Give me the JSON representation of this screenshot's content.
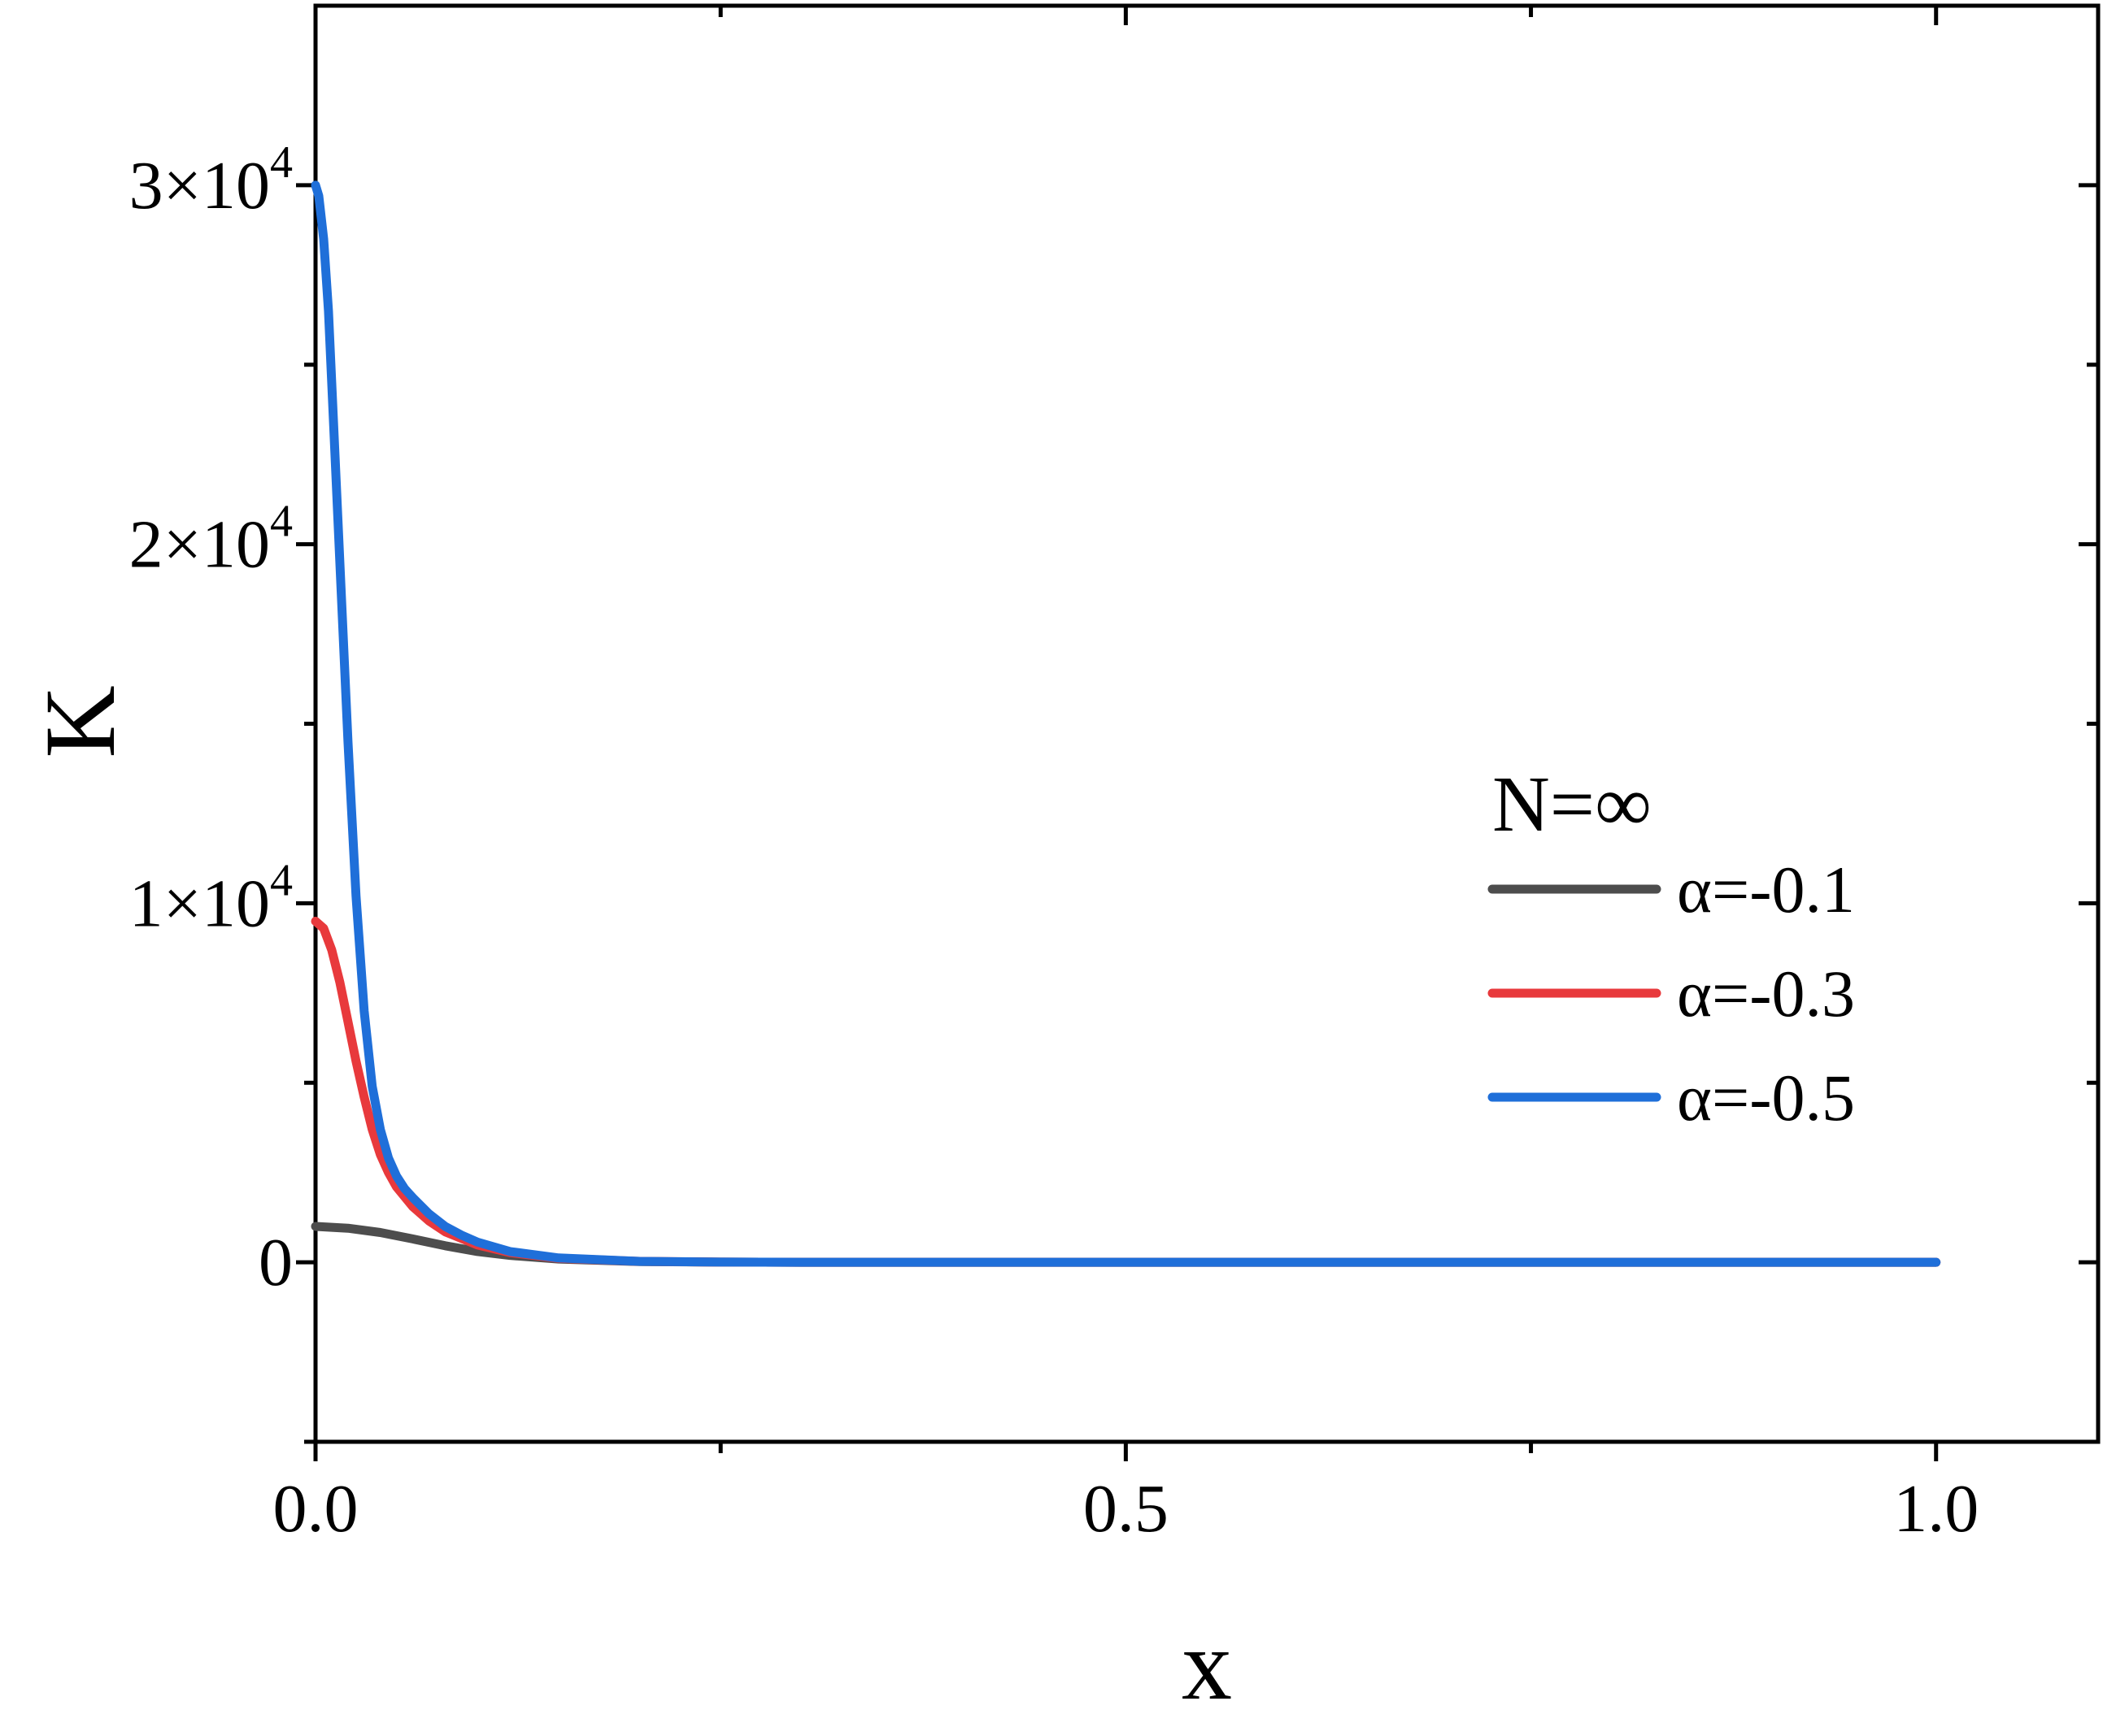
{
  "chart_data": {
    "type": "line",
    "xlabel": "x",
    "ylabel": "K",
    "xlim": [
      0.0,
      1.1
    ],
    "ylim": [
      -5000,
      35000
    ],
    "x_ticks": [
      {
        "value": 0.0,
        "label": "0.0"
      },
      {
        "value": 0.5,
        "label": "0.5"
      },
      {
        "value": 1.0,
        "label": "1.0"
      }
    ],
    "y_ticks": [
      {
        "value": 0,
        "mantissa": "0",
        "exponent": ""
      },
      {
        "value": 10000,
        "mantissa": "1×10",
        "exponent": "4"
      },
      {
        "value": 20000,
        "mantissa": "2×10",
        "exponent": "4"
      },
      {
        "value": 30000,
        "mantissa": "3×10",
        "exponent": "4"
      }
    ],
    "x_minor_ticks": [
      0.25,
      0.75
    ],
    "y_minor_ticks": [
      -5000,
      5000,
      15000,
      25000
    ],
    "grid": false,
    "legend": {
      "title": "N=∞",
      "placement": "right"
    },
    "series": [
      {
        "name": "α=-0.1",
        "color": "#4d4d4d",
        "x": [
          0,
          0.02,
          0.04,
          0.06,
          0.08,
          0.1,
          0.12,
          0.15,
          0.2,
          0.25,
          0.3,
          0.4,
          0.5,
          0.7,
          1.0
        ],
        "y": [
          1000,
          950,
          830,
          650,
          460,
          300,
          190,
          90,
          20,
          5,
          0,
          0,
          0,
          0,
          0
        ]
      },
      {
        "name": "α=-0.3",
        "color": "#e8393c",
        "x": [
          0,
          0.005,
          0.01,
          0.015,
          0.02,
          0.025,
          0.03,
          0.035,
          0.04,
          0.045,
          0.05,
          0.06,
          0.07,
          0.08,
          0.1,
          0.12,
          0.15,
          0.2,
          0.25,
          0.3,
          0.4,
          0.5,
          0.7,
          1.0
        ],
        "y": [
          9500,
          9300,
          8700,
          7800,
          6700,
          5600,
          4600,
          3700,
          3000,
          2500,
          2100,
          1550,
          1150,
          850,
          480,
          270,
          110,
          25,
          5,
          0,
          0,
          0,
          0,
          0
        ]
      },
      {
        "name": "α=-0.5",
        "color": "#1f6fd9",
        "x": [
          0,
          0.002,
          0.005,
          0.008,
          0.01,
          0.015,
          0.02,
          0.025,
          0.03,
          0.035,
          0.04,
          0.045,
          0.05,
          0.055,
          0.06,
          0.07,
          0.08,
          0.09,
          0.1,
          0.12,
          0.15,
          0.2,
          0.25,
          0.3,
          0.4,
          0.5,
          0.7,
          1.0
        ],
        "y": [
          30000,
          29700,
          28500,
          26500,
          24500,
          19500,
          14500,
          10200,
          7000,
          4900,
          3700,
          2900,
          2400,
          2050,
          1800,
          1350,
          1000,
          760,
          560,
          300,
          120,
          25,
          5,
          0,
          0,
          0,
          0,
          0
        ]
      }
    ]
  }
}
